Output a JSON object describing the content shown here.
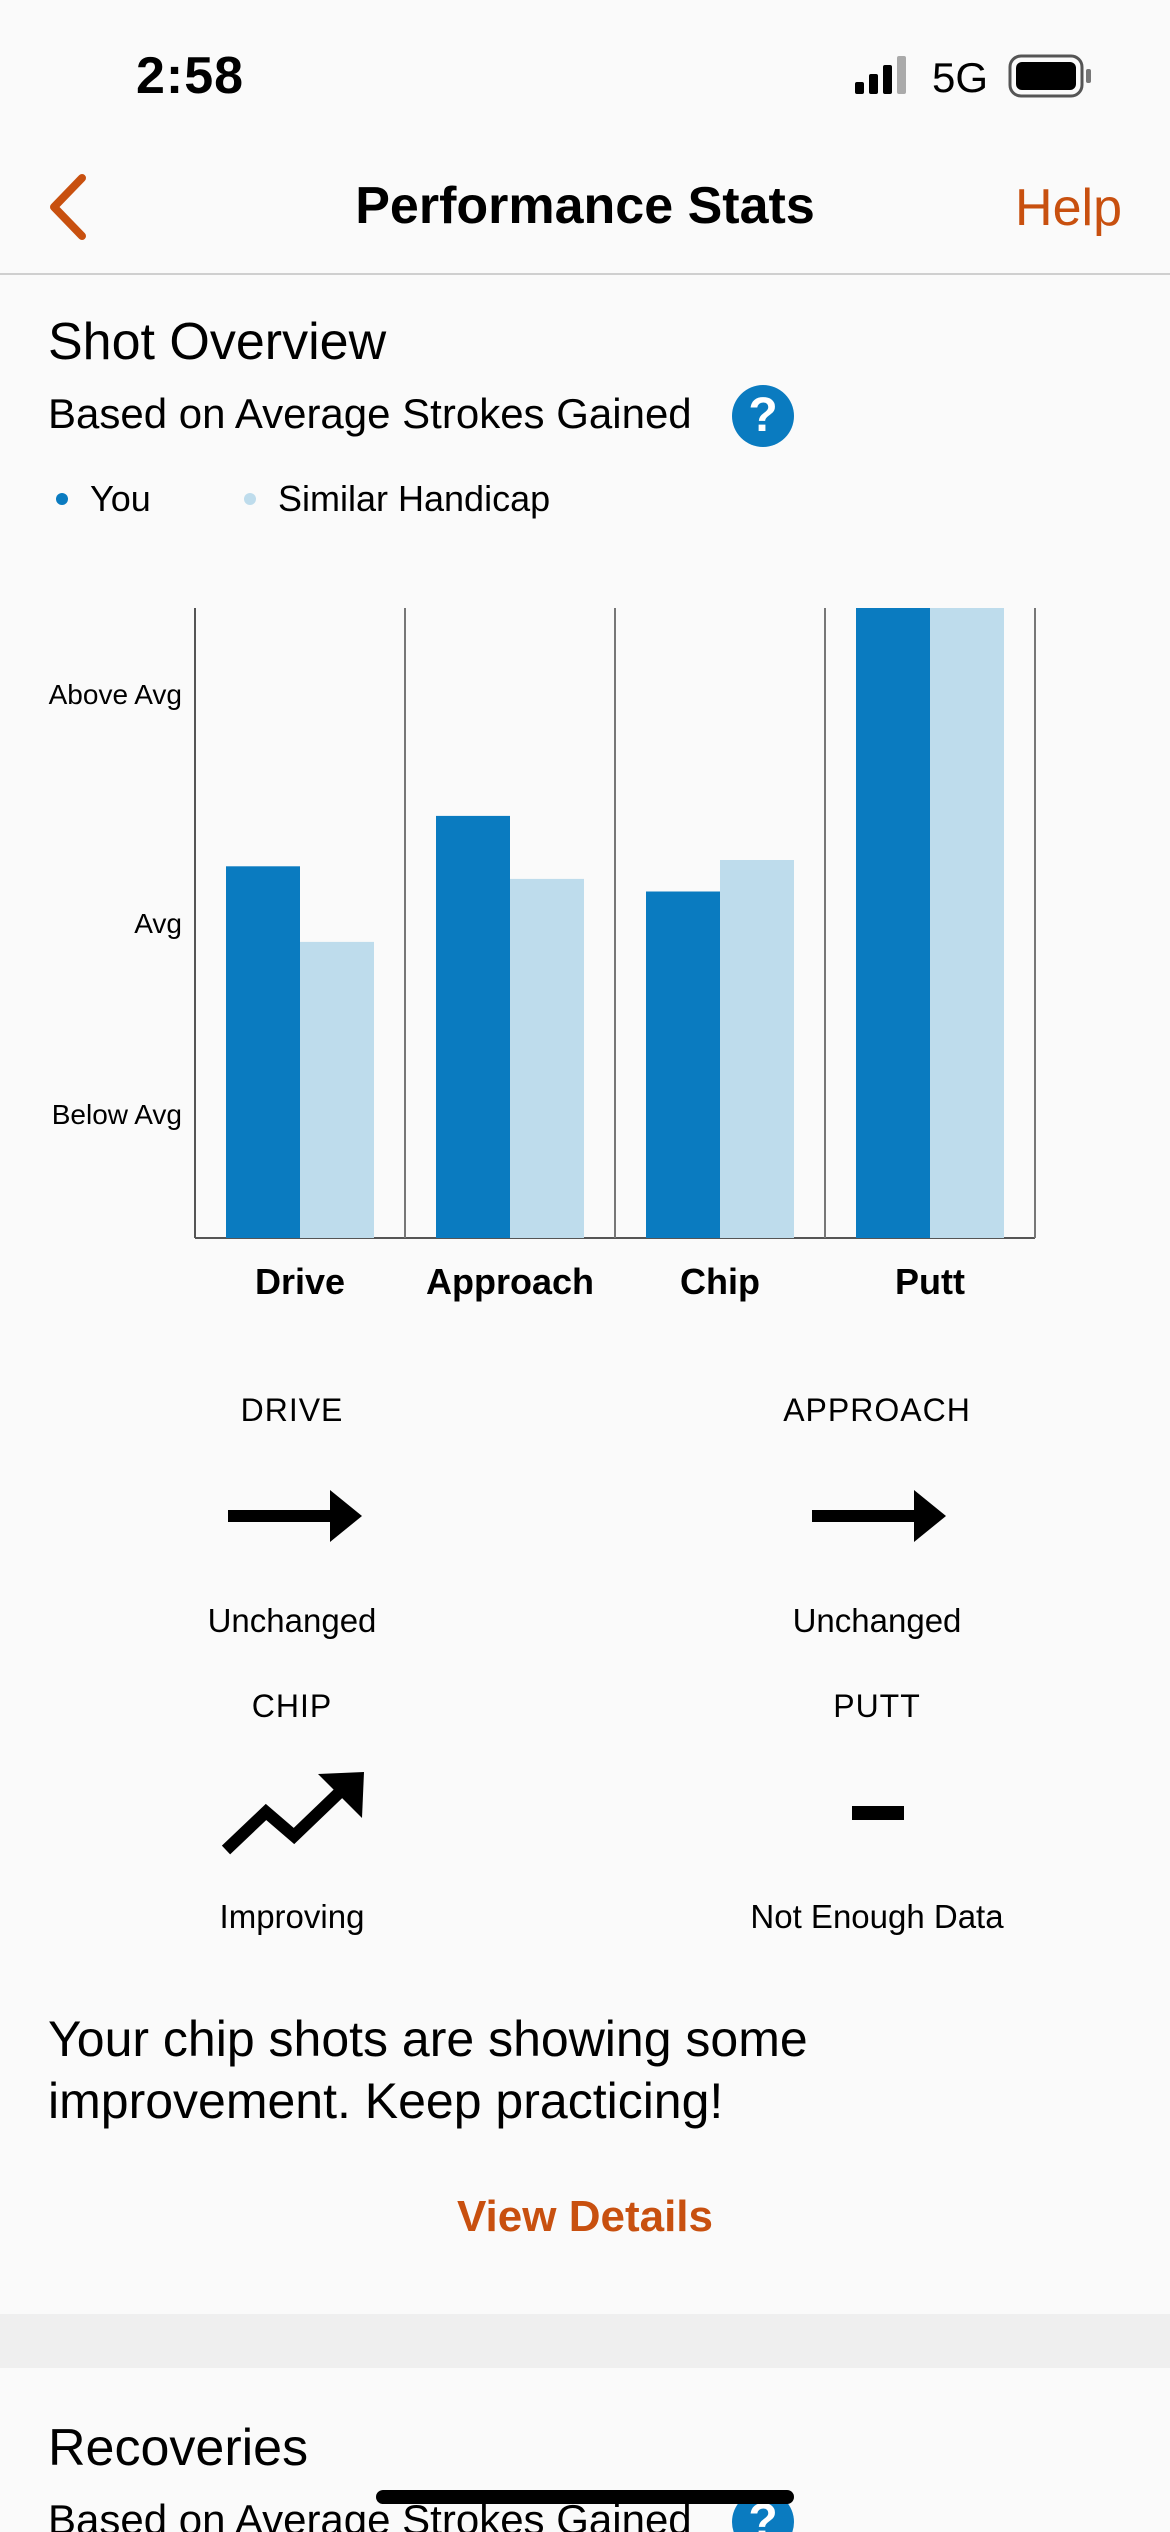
{
  "status_bar": {
    "time": "2:58",
    "network": "5G"
  },
  "nav": {
    "title": "Performance Stats",
    "help_label": "Help"
  },
  "shot_overview": {
    "title": "Shot Overview",
    "subtitle": "Based on Average Strokes Gained",
    "help_icon": "?",
    "legend": [
      {
        "label": "You",
        "color": "#0a7bc0"
      },
      {
        "label": "Similar Handicap",
        "color": "#bedcec"
      }
    ]
  },
  "chart_data": {
    "type": "bar",
    "categories": [
      "Drive",
      "Approach",
      "Chip",
      "Putt"
    ],
    "y_tick_labels": [
      "Above Avg",
      "Avg",
      "Below Avg"
    ],
    "ylim": [
      0,
      100
    ],
    "series": [
      {
        "name": "You",
        "color": "#0a7bc0",
        "values": [
          59,
          67,
          55,
          100
        ]
      },
      {
        "name": "Similar Handicap",
        "color": "#bedcec",
        "values": [
          47,
          57,
          60,
          100
        ]
      }
    ]
  },
  "trends": [
    {
      "category": "DRIVE",
      "status": "Unchanged",
      "icon": "arrow-right-icon"
    },
    {
      "category": "APPROACH",
      "status": "Unchanged",
      "icon": "arrow-right-icon"
    },
    {
      "category": "CHIP",
      "status": "Improving",
      "icon": "trend-up-icon"
    },
    {
      "category": "PUTT",
      "status": "Not Enough Data",
      "icon": "dash-icon"
    }
  ],
  "message": "Your chip shots are showing some improvement. Keep practicing!",
  "view_details_label": "View Details",
  "recoveries": {
    "title": "Recoveries",
    "subtitle": "Based on Average Strokes Gained",
    "help_icon": "?"
  }
}
